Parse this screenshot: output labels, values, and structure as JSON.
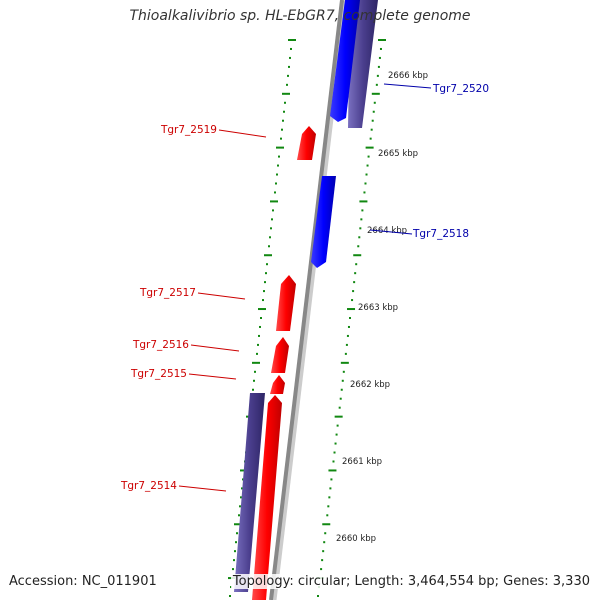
{
  "title": "Thioalkalivibrio sp. HL-EbGR7, complete genome",
  "accession": "Accession: NC_011901",
  "summary": "Topology: circular; Length: 3,464,554 bp; Genes: 3,330",
  "colors": {
    "forward_gene": "#ff0000",
    "reverse_gene": "#0000ff",
    "cds_outer": "#4b3f8e",
    "backbone": "#888888",
    "ticks": "#118811",
    "label_forward": "#cc0000",
    "label_reverse": "#0000aa"
  },
  "scale_labels": [
    "2666 kbp",
    "2665 kbp",
    "2664 kbp",
    "2663 kbp",
    "2662 kbp",
    "2661 kbp",
    "2660 kbp"
  ],
  "gene_labels": [
    {
      "label": "Tgr7_2520",
      "strand": "reverse"
    },
    {
      "label": "Tgr7_2519",
      "strand": "forward"
    },
    {
      "label": "Tgr7_2518",
      "strand": "reverse"
    },
    {
      "label": "Tgr7_2517",
      "strand": "forward"
    },
    {
      "label": "Tgr7_2516",
      "strand": "forward"
    },
    {
      "label": "Tgr7_2515",
      "strand": "forward"
    },
    {
      "label": "Tgr7_2514",
      "strand": "forward"
    }
  ]
}
